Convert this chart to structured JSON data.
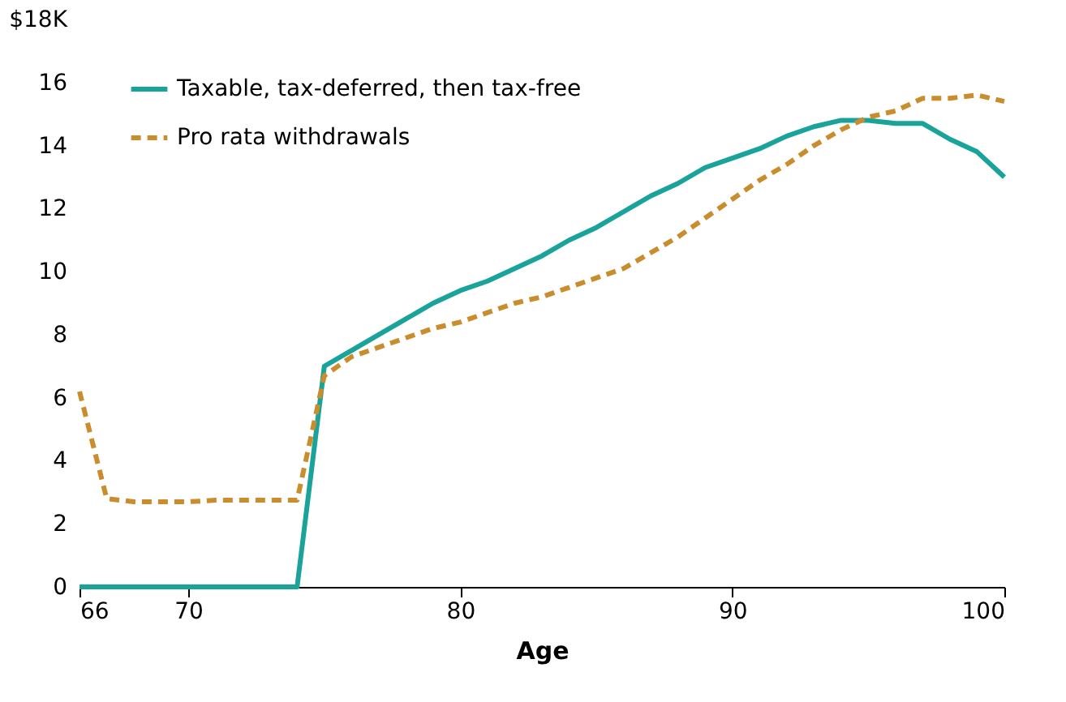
{
  "chart_data": {
    "type": "line",
    "xlabel": "Age",
    "x": [
      66,
      67,
      68,
      69,
      70,
      71,
      72,
      73,
      74,
      75,
      76,
      77,
      78,
      79,
      80,
      81,
      82,
      83,
      84,
      85,
      86,
      87,
      88,
      89,
      90,
      91,
      92,
      93,
      94,
      95,
      96,
      97,
      98,
      99,
      100
    ],
    "series": [
      {
        "name": "Taxable, tax-deferred, then tax-free",
        "color": "#1aa39a",
        "line_style": "solid",
        "values": [
          0,
          0,
          0,
          0,
          0,
          0,
          0,
          0,
          0,
          7.0,
          7.5,
          8.0,
          8.5,
          9.0,
          9.4,
          9.7,
          10.1,
          10.5,
          11.0,
          11.4,
          11.9,
          12.4,
          12.8,
          13.3,
          13.6,
          13.9,
          14.3,
          14.6,
          14.8,
          14.8,
          14.7,
          14.7,
          14.2,
          13.8,
          13.0
        ]
      },
      {
        "name": "Pro rata withdrawals",
        "color": "#c98d2e",
        "line_style": "dashed",
        "values": [
          6.2,
          2.8,
          2.7,
          2.7,
          2.7,
          2.75,
          2.75,
          2.75,
          2.75,
          6.7,
          7.3,
          7.6,
          7.9,
          8.2,
          8.4,
          8.7,
          9.0,
          9.2,
          9.5,
          9.8,
          10.1,
          10.6,
          11.1,
          11.7,
          12.3,
          12.9,
          13.4,
          14.0,
          14.5,
          14.9,
          15.1,
          15.5,
          15.5,
          15.6,
          15.4
        ]
      }
    ],
    "xlim": [
      66,
      100
    ],
    "xticks": [
      66,
      70,
      80,
      90,
      100
    ],
    "ylim": [
      0,
      18
    ],
    "yticks": [
      0,
      2,
      4,
      6,
      8,
      10,
      12,
      14,
      16,
      {
        "value": 18,
        "label": "$18K"
      }
    ],
    "grid": false,
    "legend": "top left",
    "marker": "none"
  }
}
